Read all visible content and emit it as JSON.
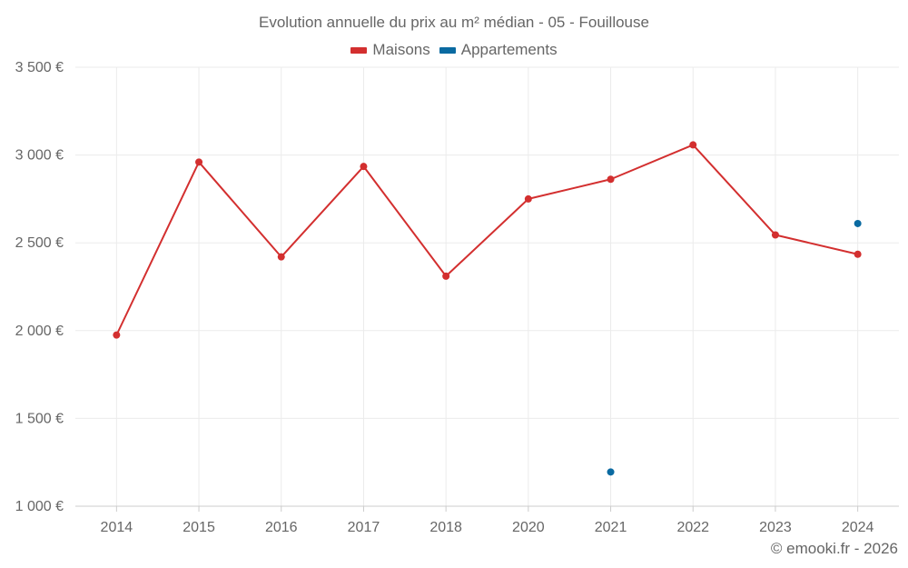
{
  "chart_data": {
    "type": "line",
    "title": "Evolution annuelle du prix au m² médian - 05 - Fouillouse",
    "categories": [
      "2014",
      "2015",
      "2016",
      "2017",
      "2018",
      "2020",
      "2021",
      "2022",
      "2023",
      "2024"
    ],
    "y_tick_labels": [
      "1 000 €",
      "1 500 €",
      "2 000 €",
      "2 500 €",
      "3 000 €",
      "3 500 €"
    ],
    "y_ticks": [
      1000,
      1500,
      2000,
      2500,
      3000,
      3500
    ],
    "ylim": [
      1000,
      3500
    ],
    "grid": true,
    "legend_position": "top-center",
    "series": [
      {
        "name": "Maisons",
        "color": "#d32f2f",
        "line": true,
        "values": [
          1975,
          2960,
          2420,
          2935,
          2310,
          2750,
          2862,
          3058,
          2545,
          2435
        ]
      },
      {
        "name": "Appartements",
        "color": "#0a6aa1",
        "line": false,
        "values": [
          null,
          null,
          null,
          null,
          null,
          null,
          1195,
          null,
          null,
          2610
        ]
      }
    ]
  },
  "credit": "© emooki.fr - 2026"
}
